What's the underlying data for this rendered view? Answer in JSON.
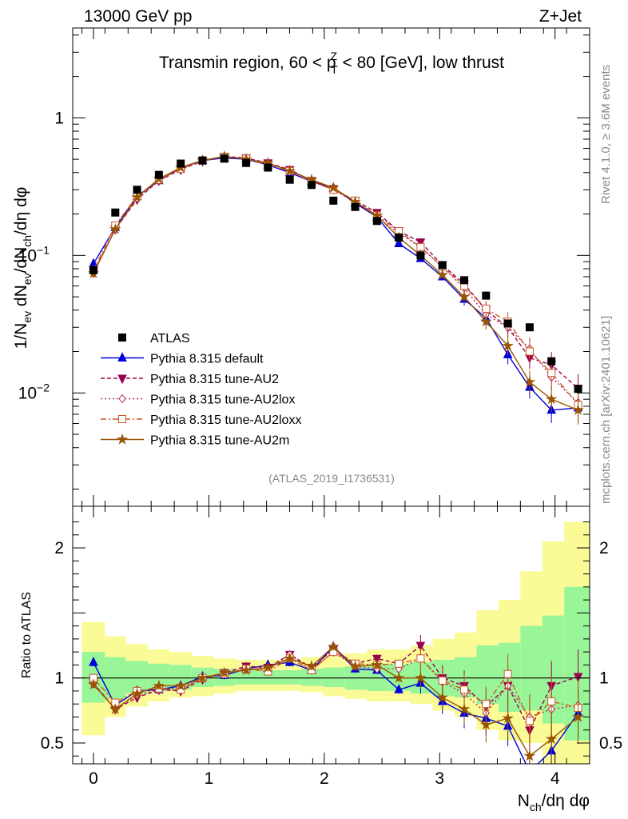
{
  "header": {
    "left": "13000 GeV pp",
    "right": "Z+Jet"
  },
  "side_labels": {
    "rivet": "Rivet 4.1.0, ≥ 3.6M events",
    "mcplots": "mcplots.cern.ch [arXiv:2401.10621]"
  },
  "colors": {
    "band_inner": "#98f598",
    "band_outer": "#fafa96",
    "ATLAS": "#000000",
    "default": "#0000dd",
    "AU2": "#99004d",
    "AU2lox": "#b3264d",
    "AU2loxx": "#cc5526",
    "AU2m": "#995500"
  },
  "chart_data": [
    {
      "type": "line",
      "panel": "main",
      "title_parts": [
        "Transmin region, 60 < p",
        "Z",
        "T",
        " < 80 [GeV], low thrust"
      ],
      "ylabel_parts": [
        "1/N",
        "ev",
        " dN",
        "ev",
        "/dN",
        "ch",
        "/dη dφ"
      ],
      "ylim": [
        0.0015,
        4.5
      ],
      "yscale": "log",
      "xlim": [
        -0.18,
        4.3
      ],
      "yticks": [
        {
          "value": 1,
          "base": "1",
          "exp": ""
        },
        {
          "value": 0.1,
          "base": "10",
          "exp": "−1"
        },
        {
          "value": 0.01,
          "base": "10",
          "exp": "−2"
        }
      ],
      "watermark": "(ATLAS_2019_I1736531)",
      "x": [
        0.0,
        0.189,
        0.378,
        0.567,
        0.756,
        0.945,
        1.134,
        1.323,
        1.512,
        1.701,
        1.89,
        2.079,
        2.268,
        2.457,
        2.646,
        2.835,
        3.024,
        3.213,
        3.402,
        3.591,
        3.78,
        3.969,
        4.2
      ],
      "legend": [
        {
          "key": "ATLAS",
          "label": "ATLAS"
        },
        {
          "key": "default",
          "label": "Pythia 8.315 default"
        },
        {
          "key": "AU2",
          "label": "Pythia 8.315 tune-AU2"
        },
        {
          "key": "AU2lox",
          "label": "Pythia 8.315 tune-AU2lox"
        },
        {
          "key": "AU2loxx",
          "label": "Pythia 8.315 tune-AU2loxx"
        },
        {
          "key": "AU2m",
          "label": "Pythia 8.315 tune-AU2m"
        }
      ],
      "series": [
        {
          "key": "ATLAS",
          "name": "ATLAS",
          "values": [
            0.078,
            0.205,
            0.3,
            0.385,
            0.465,
            0.49,
            0.505,
            0.47,
            0.435,
            0.355,
            0.325,
            0.25,
            0.225,
            0.178,
            0.135,
            0.1,
            0.085,
            0.066,
            0.051,
            0.032,
            0.03,
            0.017,
            0.0107
          ]
        },
        {
          "key": "default",
          "name": "Pythia 8.315 default",
          "values": [
            0.087,
            0.16,
            0.27,
            0.35,
            0.435,
            0.49,
            0.51,
            0.5,
            0.455,
            0.4,
            0.345,
            0.31,
            0.24,
            0.19,
            0.122,
            0.095,
            0.07,
            0.048,
            0.035,
            0.019,
            0.011,
            0.0075,
            0.0078
          ]
        },
        {
          "key": "AU2",
          "name": "Pythia 8.315 tune-AU2",
          "values": [
            0.075,
            0.155,
            0.255,
            0.35,
            0.42,
            0.485,
            0.525,
            0.51,
            0.47,
            0.42,
            0.35,
            0.305,
            0.25,
            0.205,
            0.15,
            0.125,
            0.085,
            0.062,
            0.04,
            0.03,
            0.018,
            0.016,
            0.0108
          ]
        },
        {
          "key": "AU2lox",
          "name": "Pythia 8.315 tune-AU2lox",
          "values": [
            0.075,
            0.155,
            0.26,
            0.35,
            0.43,
            0.49,
            0.525,
            0.505,
            0.46,
            0.42,
            0.345,
            0.3,
            0.245,
            0.19,
            0.145,
            0.115,
            0.082,
            0.058,
            0.037,
            0.03,
            0.021,
            0.013,
            0.0085
          ]
        },
        {
          "key": "AU2loxx",
          "name": "Pythia 8.315 tune-AU2loxx",
          "values": [
            0.078,
            0.165,
            0.27,
            0.355,
            0.425,
            0.49,
            0.52,
            0.505,
            0.455,
            0.41,
            0.345,
            0.3,
            0.25,
            0.195,
            0.15,
            0.115,
            0.083,
            0.06,
            0.041,
            0.033,
            0.02,
            0.014,
            0.0082
          ]
        },
        {
          "key": "AU2m",
          "name": "Pythia 8.315 tune-AU2m",
          "values": [
            0.074,
            0.155,
            0.265,
            0.36,
            0.435,
            0.49,
            0.525,
            0.5,
            0.47,
            0.41,
            0.355,
            0.31,
            0.245,
            0.195,
            0.135,
            0.1,
            0.072,
            0.05,
            0.033,
            0.022,
            0.012,
            0.009,
            0.0075
          ]
        }
      ]
    },
    {
      "type": "line",
      "panel": "ratio",
      "ylabel": "Ratio to ATLAS",
      "xlabel_parts": [
        "N",
        "ch",
        "/dη dφ"
      ],
      "ylim": [
        0.34,
        2.32
      ],
      "xlim": [
        -0.18,
        4.3
      ],
      "yticks": [
        {
          "value": 0.5,
          "label": "0.5"
        },
        {
          "value": 1,
          "label": "1"
        },
        {
          "value": 2,
          "label": "2"
        }
      ],
      "xticks": [
        {
          "value": 0,
          "label": "0"
        },
        {
          "value": 1,
          "label": "1"
        },
        {
          "value": 2,
          "label": "2"
        },
        {
          "value": 3,
          "label": "3"
        },
        {
          "value": 4,
          "label": "4"
        }
      ],
      "bands": {
        "edges": [
          -0.1,
          0.1,
          0.28,
          0.47,
          0.66,
          0.85,
          1.04,
          1.23,
          1.42,
          1.61,
          1.8,
          1.99,
          2.18,
          2.37,
          2.56,
          2.75,
          2.94,
          3.13,
          3.32,
          3.51,
          3.7,
          3.89,
          4.08,
          4.3
        ],
        "inner_lo": [
          0.81,
          0.84,
          0.88,
          0.9,
          0.91,
          0.93,
          0.94,
          0.95,
          0.95,
          0.95,
          0.94,
          0.93,
          0.91,
          0.9,
          0.9,
          0.88,
          0.86,
          0.85,
          0.8,
          0.74,
          0.75,
          0.65,
          0.52
        ],
        "inner_hi": [
          1.2,
          1.16,
          1.13,
          1.11,
          1.1,
          1.08,
          1.07,
          1.06,
          1.06,
          1.06,
          1.07,
          1.08,
          1.09,
          1.11,
          1.11,
          1.12,
          1.14,
          1.16,
          1.25,
          1.27,
          1.4,
          1.48,
          1.7
        ],
        "outer_lo": [
          0.56,
          0.7,
          0.78,
          0.82,
          0.85,
          0.86,
          0.88,
          0.9,
          0.9,
          0.9,
          0.89,
          0.86,
          0.84,
          0.82,
          0.82,
          0.8,
          0.75,
          0.7,
          0.6,
          0.52,
          0.5,
          0.34,
          0.34
        ],
        "outer_hi": [
          1.43,
          1.32,
          1.26,
          1.22,
          1.2,
          1.17,
          1.15,
          1.14,
          1.14,
          1.14,
          1.16,
          1.17,
          1.19,
          1.22,
          1.22,
          1.25,
          1.3,
          1.35,
          1.52,
          1.6,
          1.82,
          2.05,
          2.2
        ]
      },
      "series": [
        {
          "key": "default",
          "values": [
            1.12,
            0.79,
            0.9,
            0.91,
            0.94,
            1.01,
            1.02,
            1.07,
            1.1,
            1.12,
            1.06,
            1.24,
            1.07,
            1.06,
            0.91,
            0.96,
            0.82,
            0.73,
            0.69,
            0.63,
            0.28,
            0.44,
            0.73
          ]
        },
        {
          "key": "AU2",
          "values": [
            0.96,
            0.76,
            0.85,
            0.91,
            0.9,
            0.99,
            1.04,
            1.09,
            1.08,
            1.18,
            1.08,
            1.22,
            1.11,
            1.15,
            1.11,
            1.25,
            1.0,
            0.94,
            0.78,
            0.94,
            0.6,
            0.94,
            1.01
          ]
        },
        {
          "key": "AU2lox",
          "values": [
            0.96,
            0.76,
            0.87,
            0.91,
            0.92,
            1.0,
            1.04,
            1.07,
            1.06,
            1.18,
            1.06,
            1.2,
            1.09,
            1.07,
            1.07,
            1.15,
            0.97,
            0.88,
            0.73,
            0.94,
            0.7,
            0.76,
            0.79
          ]
        },
        {
          "key": "AU2loxx",
          "values": [
            1.0,
            0.81,
            0.9,
            0.92,
            0.91,
            1.0,
            1.03,
            1.07,
            1.05,
            1.15,
            1.06,
            1.2,
            1.11,
            1.1,
            1.11,
            1.15,
            0.98,
            0.91,
            0.8,
            1.03,
            0.67,
            0.82,
            0.77
          ]
        },
        {
          "key": "AU2m",
          "values": [
            0.95,
            0.76,
            0.88,
            0.94,
            0.94,
            1.0,
            1.04,
            1.06,
            1.08,
            1.15,
            1.09,
            1.24,
            1.09,
            1.1,
            1.0,
            1.0,
            0.85,
            0.76,
            0.64,
            0.69,
            0.4,
            0.53,
            0.7
          ]
        }
      ]
    }
  ]
}
